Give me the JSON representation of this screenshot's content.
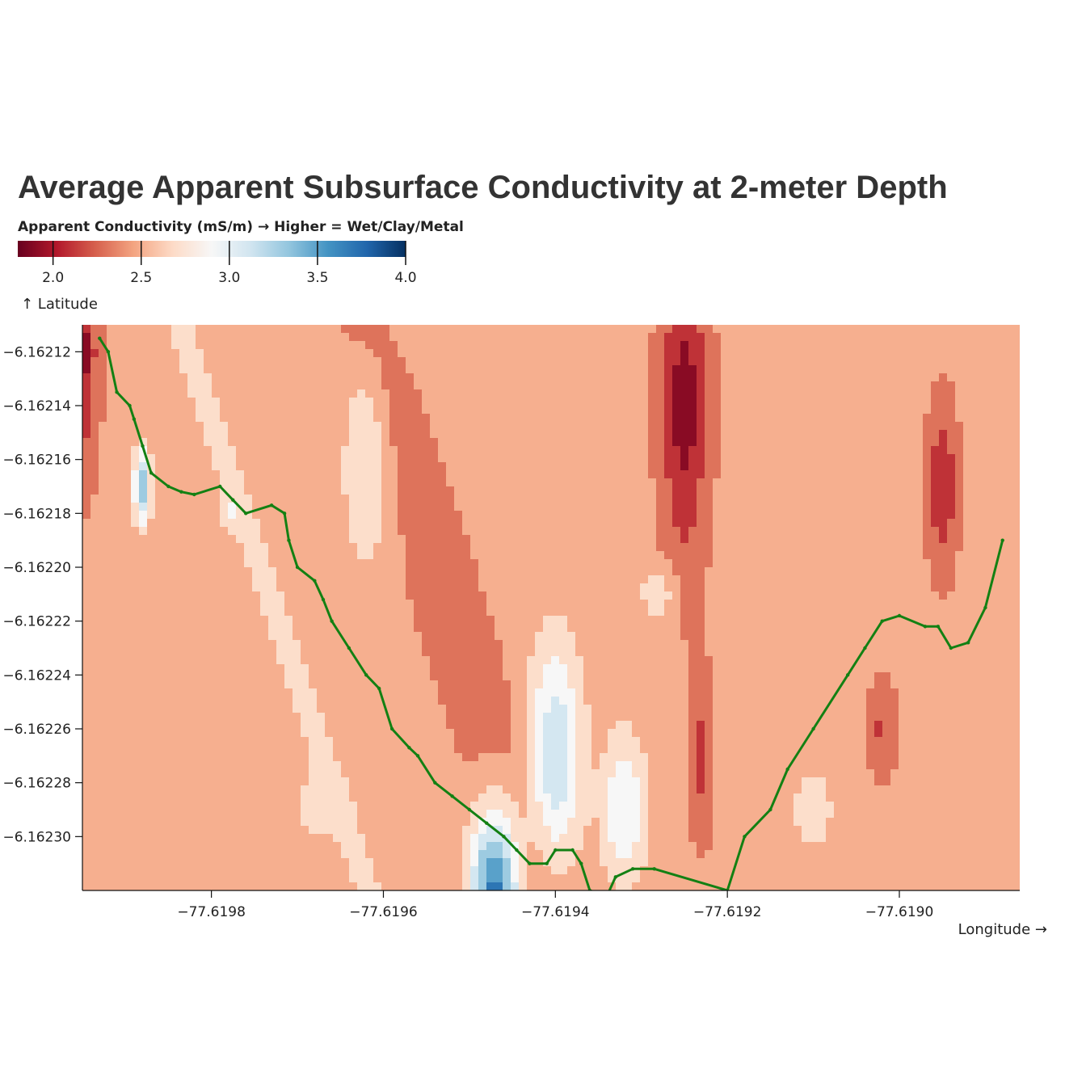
{
  "chart_data": {
    "type": "heatmap",
    "title": "Average Apparent Subsurface Conductivity at 2-meter Depth",
    "xlabel": "Longitude →",
    "ylabel": "↑ Latitude",
    "xlim": [
      -77.61995,
      -77.61886
    ],
    "ylim": [
      -6.16211,
      -6.16232
    ],
    "x_ticks": [
      -77.6198,
      -77.6196,
      -77.6194,
      -77.6192,
      -77.619
    ],
    "x_tick_labels": [
      "−77.6198",
      "−77.6196",
      "−77.6194",
      "−77.6192",
      "−77.6190"
    ],
    "y_ticks": [
      -6.1623,
      -6.16228,
      -6.16226,
      -6.16224,
      -6.16222,
      -6.1622,
      -6.16218,
      -6.16216,
      -6.16214,
      -6.16212
    ],
    "y_tick_labels": [
      "−6.16230",
      "−6.16228",
      "−6.16226",
      "−6.16224",
      "−6.16222",
      "−6.16220",
      "−6.16218",
      "−6.16216",
      "−6.16214",
      "−6.16212"
    ],
    "legend": {
      "title": "Apparent Conductivity (mS/m) → Higher = Wet/Clay/Metal",
      "colormap": "RdBu",
      "domain": [
        1.8,
        4.0
      ],
      "ticks": [
        2.0,
        2.5,
        3.0,
        3.5,
        4.0
      ],
      "tick_labels": [
        "2.0",
        "2.5",
        "3.0",
        "3.5",
        "4.0"
      ],
      "placement": "top-left"
    },
    "colors": {
      "track": "#138013",
      "min": "#67001f",
      "max": "#053061",
      "neutral": "#f7f7f7"
    },
    "conductivity_field": {
      "base": 2.45,
      "components": [
        {
          "kind": "band",
          "amp": -0.38,
          "center": [
            -77.6195,
            -6.16224
          ],
          "dir": [
            1.0,
            -0.95
          ],
          "width": 1.8e-05
        },
        {
          "kind": "band",
          "amp": 0.24,
          "center": [
            -77.61958,
            -6.16217
          ],
          "dir": [
            1.0,
            -0.9
          ],
          "width": 1.5e-05
        },
        {
          "kind": "band",
          "amp": 0.2,
          "center": [
            -77.61968,
            -6.16226
          ],
          "dir": [
            1.0,
            -0.95
          ],
          "width": 1.3e-05
        },
        {
          "kind": "blob",
          "amp": 1.25,
          "center": [
            -77.61947,
            -6.16232
          ],
          "sx": 2e-05,
          "sy": 2.2e-05
        },
        {
          "kind": "blob",
          "amp": 0.72,
          "center": [
            -77.6194,
            -6.16227
          ],
          "sx": 2.2e-05,
          "sy": 3e-05
        },
        {
          "kind": "blob",
          "amp": 0.55,
          "center": [
            -77.61932,
            -6.16229
          ],
          "sx": 1.8e-05,
          "sy": 2e-05
        },
        {
          "kind": "blob",
          "amp": 0.95,
          "center": [
            -77.61988,
            -6.16217
          ],
          "sx": 7e-06,
          "sy": 1e-05
        },
        {
          "kind": "blob",
          "amp": 0.3,
          "center": [
            -77.61978,
            -6.16218
          ],
          "sx": 5e-06,
          "sy": 4e-06
        },
        {
          "kind": "blob",
          "amp": 0.36,
          "center": [
            -77.61962,
            -6.16216
          ],
          "sx": 2e-05,
          "sy": 3e-05
        },
        {
          "kind": "blob",
          "amp": 0.3,
          "center": [
            -77.61928,
            -6.16221
          ],
          "sx": 1.6e-05,
          "sy": 7e-06
        },
        {
          "kind": "blob",
          "amp": 0.25,
          "center": [
            -77.61968,
            -6.16229
          ],
          "sx": 1.6e-05,
          "sy": 8e-06
        },
        {
          "kind": "blob",
          "amp": 0.25,
          "center": [
            -77.6191,
            -6.16229
          ],
          "sx": 2e-05,
          "sy": 1.2e-05
        },
        {
          "kind": "blob",
          "amp": -0.55,
          "center": [
            -77.61925,
            -6.16214
          ],
          "sx": 1.8e-05,
          "sy": 4e-05
        },
        {
          "kind": "blob",
          "amp": -0.32,
          "center": [
            -77.61923,
            -6.16227
          ],
          "sx": 9e-06,
          "sy": 2e-05
        },
        {
          "kind": "blob",
          "amp": -0.5,
          "center": [
            -77.61995,
            -6.16212
          ],
          "sx": 1.2e-05,
          "sy": 3e-05
        },
        {
          "kind": "blob",
          "amp": -0.42,
          "center": [
            -77.61895,
            -6.16217
          ],
          "sx": 1.2e-05,
          "sy": 2e-05
        },
        {
          "kind": "blob",
          "amp": -0.28,
          "center": [
            -77.61902,
            -6.16226
          ],
          "sx": 1e-05,
          "sy": 1.2e-05
        }
      ]
    },
    "track_points": [
      [
        -77.61993,
        -6.162115
      ],
      [
        -77.61992,
        -6.16212
      ],
      [
        -77.61991,
        -6.162135
      ],
      [
        -77.619895,
        -6.16214
      ],
      [
        -77.61989,
        -6.162145
      ],
      [
        -77.61988,
        -6.162155
      ],
      [
        -77.61987,
        -6.162165
      ],
      [
        -77.61985,
        -6.16217
      ],
      [
        -77.619835,
        -6.162172
      ],
      [
        -77.61982,
        -6.162173
      ],
      [
        -77.61979,
        -6.16217
      ],
      [
        -77.619775,
        -6.162175
      ],
      [
        -77.61976,
        -6.16218
      ],
      [
        -77.61973,
        -6.162177
      ],
      [
        -77.619715,
        -6.16218
      ],
      [
        -77.61971,
        -6.16219
      ],
      [
        -77.6197,
        -6.1622
      ],
      [
        -77.61968,
        -6.162205
      ],
      [
        -77.61967,
        -6.162212
      ],
      [
        -77.61966,
        -6.16222
      ],
      [
        -77.61964,
        -6.16223
      ],
      [
        -77.61962,
        -6.16224
      ],
      [
        -77.619605,
        -6.162245
      ],
      [
        -77.61959,
        -6.16226
      ],
      [
        -77.61957,
        -6.162267
      ],
      [
        -77.61956,
        -6.16227
      ],
      [
        -77.61954,
        -6.16228
      ],
      [
        -77.61952,
        -6.162285
      ],
      [
        -77.6195,
        -6.16229
      ],
      [
        -77.61948,
        -6.162295
      ],
      [
        -77.61946,
        -6.1623
      ],
      [
        -77.619445,
        -6.162305
      ],
      [
        -77.61943,
        -6.16231
      ],
      [
        -77.61941,
        -6.16231
      ],
      [
        -77.6194,
        -6.162305
      ],
      [
        -77.61938,
        -6.162305
      ],
      [
        -77.61937,
        -6.16231
      ],
      [
        -77.61936,
        -6.16232
      ],
      [
        -77.61934,
        -6.162322
      ],
      [
        -77.61933,
        -6.162315
      ],
      [
        -77.61931,
        -6.162312
      ],
      [
        -77.619285,
        -6.162312
      ],
      [
        -77.6192,
        -6.16232
      ],
      [
        -77.61918,
        -6.1623
      ],
      [
        -77.61915,
        -6.16229
      ],
      [
        -77.61913,
        -6.162275
      ],
      [
        -77.6191,
        -6.16226
      ],
      [
        -77.61906,
        -6.16224
      ],
      [
        -77.61904,
        -6.16223
      ],
      [
        -77.61902,
        -6.16222
      ],
      [
        -77.619,
        -6.162218
      ],
      [
        -77.61897,
        -6.162222
      ],
      [
        -77.618955,
        -6.162222
      ],
      [
        -77.61894,
        -6.16223
      ],
      [
        -77.61892,
        -6.162228
      ],
      [
        -77.6189,
        -6.162215
      ],
      [
        -77.61888,
        -6.16219
      ]
    ]
  }
}
